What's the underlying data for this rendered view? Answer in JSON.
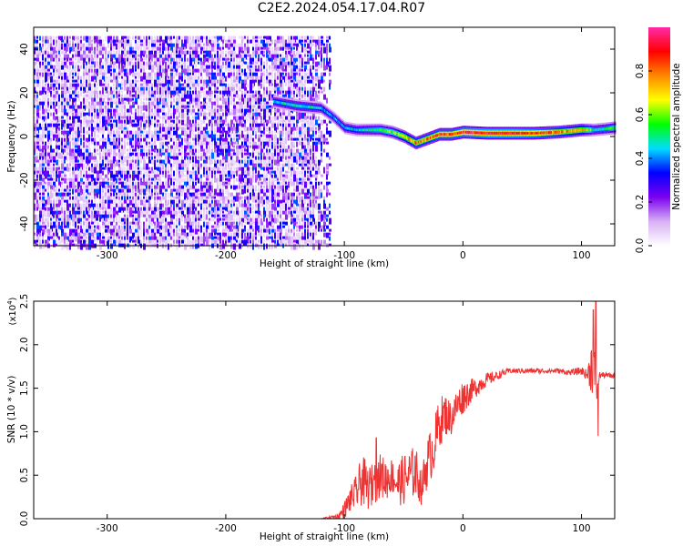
{
  "title": "C2E2.2024.054.17.04.R07",
  "chart_data": [
    {
      "type": "heatmap",
      "xlabel": "Height of straight line (km)",
      "ylabel": "Frequency (Hz)",
      "xlim": [
        -362,
        128
      ],
      "ylim": [
        -50,
        50
      ],
      "xticks": [
        -300,
        -200,
        -100,
        0,
        100
      ],
      "yticks": [
        -40,
        -20,
        0,
        20,
        40
      ],
      "colorbar": {
        "label": "Normalized spectral amplitude",
        "range": [
          0,
          1
        ],
        "ticks": [
          "0.0",
          "0.2",
          "0.4",
          "0.6",
          "0.8"
        ],
        "colormap": [
          "#ffffff",
          "#d8b0f4",
          "#7a00f0",
          "#0000ff",
          "#00ddff",
          "#00ff00",
          "#ffff00",
          "#ff8800",
          "#ff0000",
          "#ff2aa8"
        ]
      },
      "noise_region": {
        "x": [
          -362,
          -112
        ],
        "y": [
          -50,
          46
        ],
        "amplitude": 0.25
      },
      "ridge": {
        "x": [
          -160,
          -140,
          -120,
          -110,
          -100,
          -90,
          -80,
          -70,
          -60,
          -50,
          -40,
          -30,
          -20,
          -10,
          0,
          20,
          40,
          60,
          80,
          100,
          110,
          120,
          128
        ],
        "freq": [
          16,
          14,
          13,
          9,
          4,
          3,
          3,
          3,
          2,
          0,
          -3,
          -1,
          1,
          1,
          2,
          1.5,
          1.5,
          1.5,
          2,
          3,
          3,
          3.5,
          4
        ],
        "amplitude": [
          0.45,
          0.5,
          0.45,
          0.4,
          0.45,
          0.45,
          0.5,
          0.55,
          0.6,
          0.7,
          0.8,
          0.8,
          0.85,
          0.85,
          0.9,
          0.95,
          0.95,
          0.9,
          0.8,
          0.75,
          0.5,
          0.5,
          0.6
        ]
      },
      "grid": false
    },
    {
      "type": "line",
      "xlabel": "Height of straight line (km)",
      "ylabel": "SNR (10 * v/v)",
      "ylabel_scale": "(x10",
      "ylabel_scale_exp": "4",
      "ylabel_scale_close": ")",
      "xlim": [
        -362,
        128
      ],
      "ylim": [
        0,
        2.5
      ],
      "xticks": [
        -300,
        -200,
        -100,
        0,
        100
      ],
      "yticks": [
        "0.0",
        "0.5",
        "1.0",
        "1.5",
        "2.0",
        "2.5"
      ],
      "color": "#ee3333",
      "series": [
        {
          "x": [
            -362,
            -300,
            -200,
            -120,
            -105,
            -100,
            -95,
            -90,
            -85,
            -80,
            -75,
            -70,
            -65,
            -60,
            -55,
            -50,
            -45,
            -40,
            -35,
            -30,
            -25,
            -20,
            -15,
            -10,
            -5,
            0,
            5,
            10,
            15,
            20,
            25,
            30,
            35,
            40,
            60,
            80,
            90,
            100,
            105,
            108,
            110,
            112,
            115,
            120,
            128
          ],
          "values": [
            0.0,
            0.0,
            0.0,
            0.0,
            0.03,
            0.1,
            0.22,
            0.3,
            0.45,
            0.35,
            0.4,
            0.5,
            0.45,
            0.5,
            0.4,
            0.45,
            0.5,
            0.55,
            0.35,
            0.65,
            0.8,
            1.1,
            1.2,
            1.15,
            1.3,
            1.4,
            1.45,
            1.5,
            1.55,
            1.6,
            1.62,
            1.65,
            1.68,
            1.7,
            1.7,
            1.7,
            1.68,
            1.7,
            1.65,
            1.75,
            1.8,
            1.4,
            1.65,
            1.65,
            1.64
          ],
          "noise": [
            0,
            0,
            0,
            0,
            0.03,
            0.1,
            0.15,
            0.2,
            0.3,
            0.25,
            0.25,
            0.25,
            0.25,
            0.2,
            0.25,
            0.3,
            0.3,
            0.3,
            0.2,
            0.3,
            0.3,
            0.3,
            0.25,
            0.2,
            0.2,
            0.2,
            0.15,
            0.12,
            0.1,
            0.08,
            0.06,
            0.05,
            0.04,
            0.03,
            0.03,
            0.03,
            0.03,
            0.05,
            0.06,
            0.3,
            0.4,
            0.3,
            0.04,
            0.03,
            0.03
          ]
        }
      ],
      "spikes": [
        {
          "x": 112,
          "value": 2.5
        },
        {
          "x": 110,
          "value": 2.4
        },
        {
          "x": 114,
          "value": 0.95
        },
        {
          "x": -73,
          "value": 0.93
        },
        {
          "x": -75,
          "value": 0.5
        }
      ],
      "grid": false
    }
  ]
}
